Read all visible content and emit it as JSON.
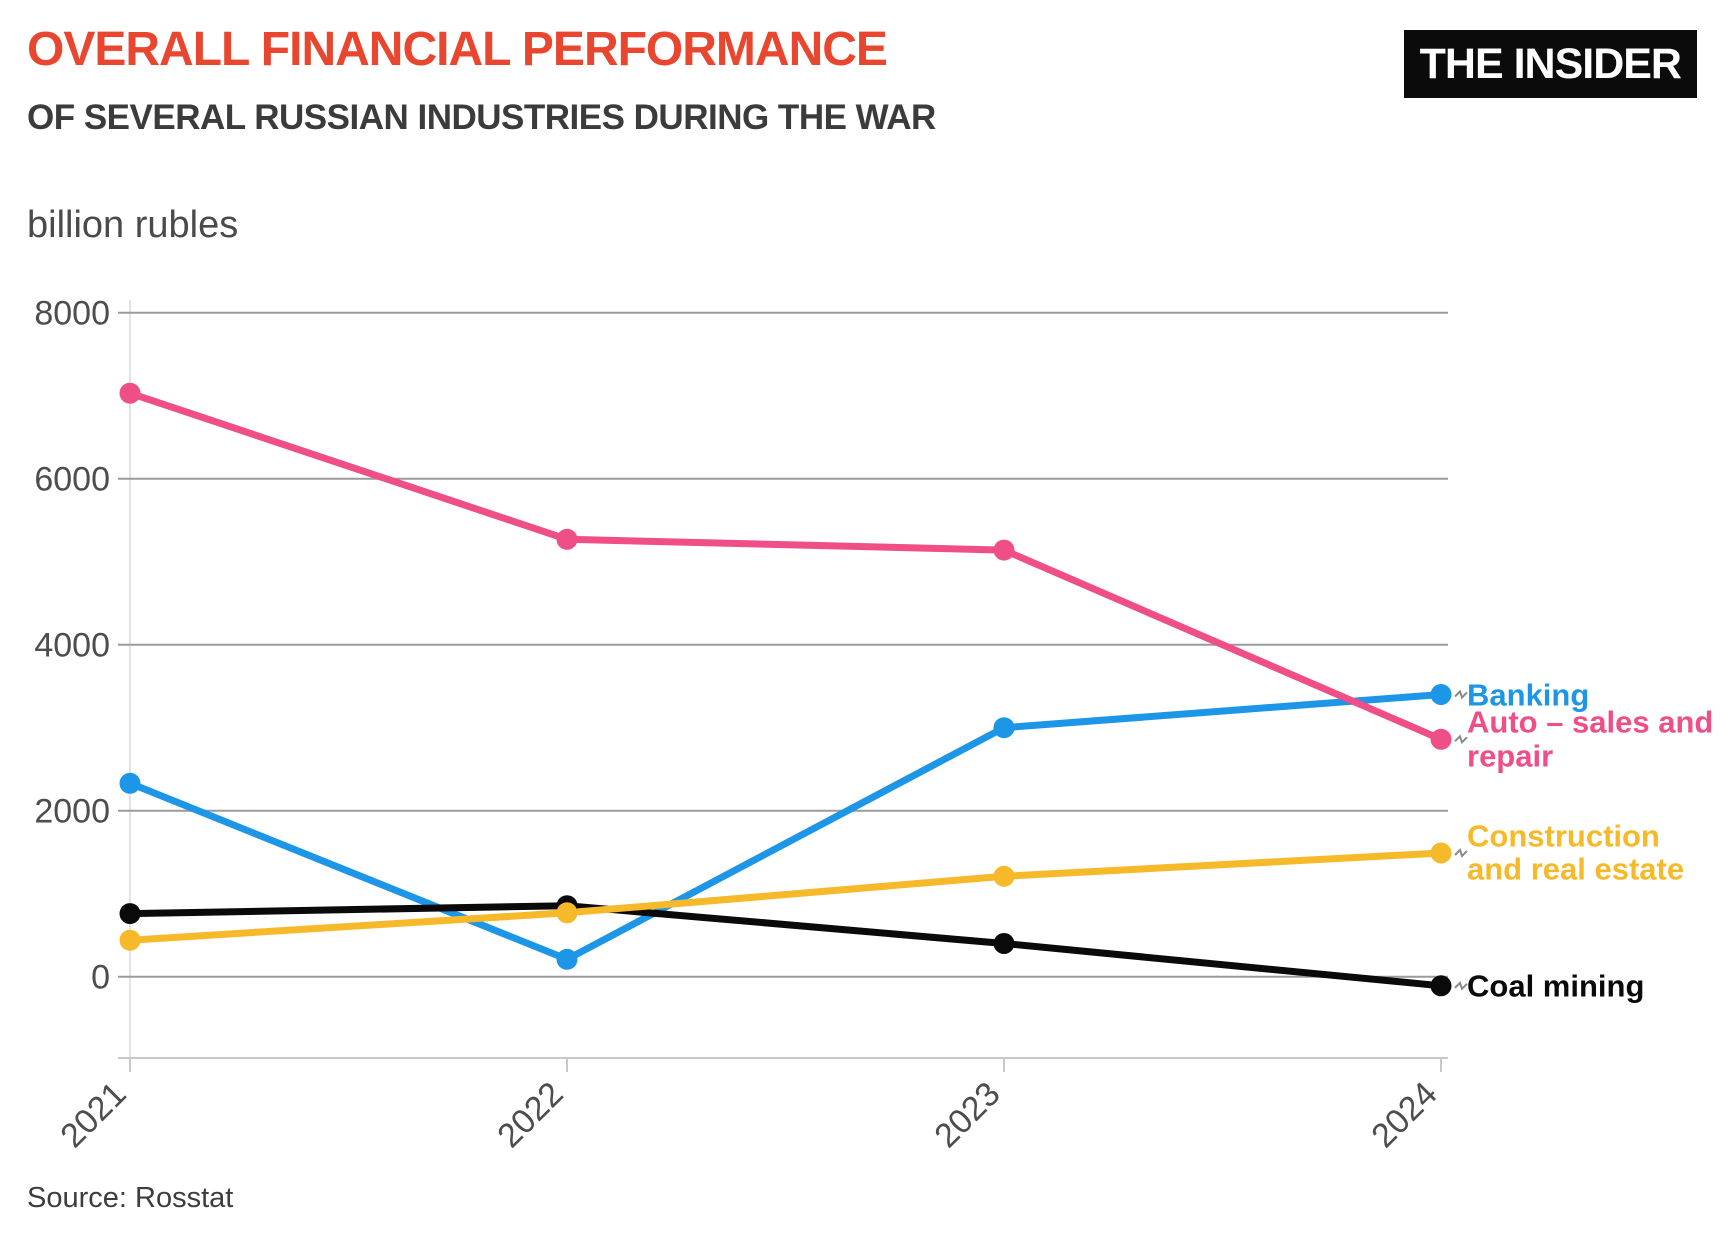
{
  "header": {
    "title": "OVERALL FINANCIAL PERFORMANCE",
    "subtitle": "OF SEVERAL RUSSIAN INDUSTRIES DURING THE WAR",
    "logo": "THE INSIDER"
  },
  "chart": {
    "accent_red": "#E8462F",
    "grid_color": "#9b9b9b",
    "axis_color": "#c9c9c9",
    "tick_label_color": "#4d4d4d",
    "leader_mark_color": "#8a8a8a"
  },
  "chart_data": {
    "type": "line",
    "title": "Overall financial performance of several Russian industries during the war",
    "ylabel": "billion rubles",
    "x": [
      "2021",
      "2022",
      "2023",
      "2024"
    ],
    "y_ticks": [
      8000,
      6000,
      4000,
      2000,
      0
    ],
    "ylim": [
      -1000,
      8200
    ],
    "grid": true,
    "legend_position": "right-end-labels",
    "series": [
      {
        "name": "Banking",
        "label_lines": [
          "Banking"
        ],
        "color": "#1D96E8",
        "values": [
          2330,
          210,
          3000,
          3400
        ]
      },
      {
        "name": "Auto – sales and repair",
        "label_lines": [
          "Auto – sales and",
          "repair"
        ],
        "color": "#EF4E87",
        "values": [
          7030,
          5270,
          5140,
          2860
        ]
      },
      {
        "name": "Construction and real estate",
        "label_lines": [
          "Construction",
          "and real estate"
        ],
        "color": "#F6B929",
        "values": [
          440,
          770,
          1210,
          1490
        ]
      },
      {
        "name": "Coal mining",
        "label_lines": [
          "Coal mining"
        ],
        "color": "#0a0a0a",
        "values": [
          760,
          855,
          400,
          -110
        ]
      }
    ]
  },
  "footer": {
    "source": "Source: Rosstat"
  }
}
